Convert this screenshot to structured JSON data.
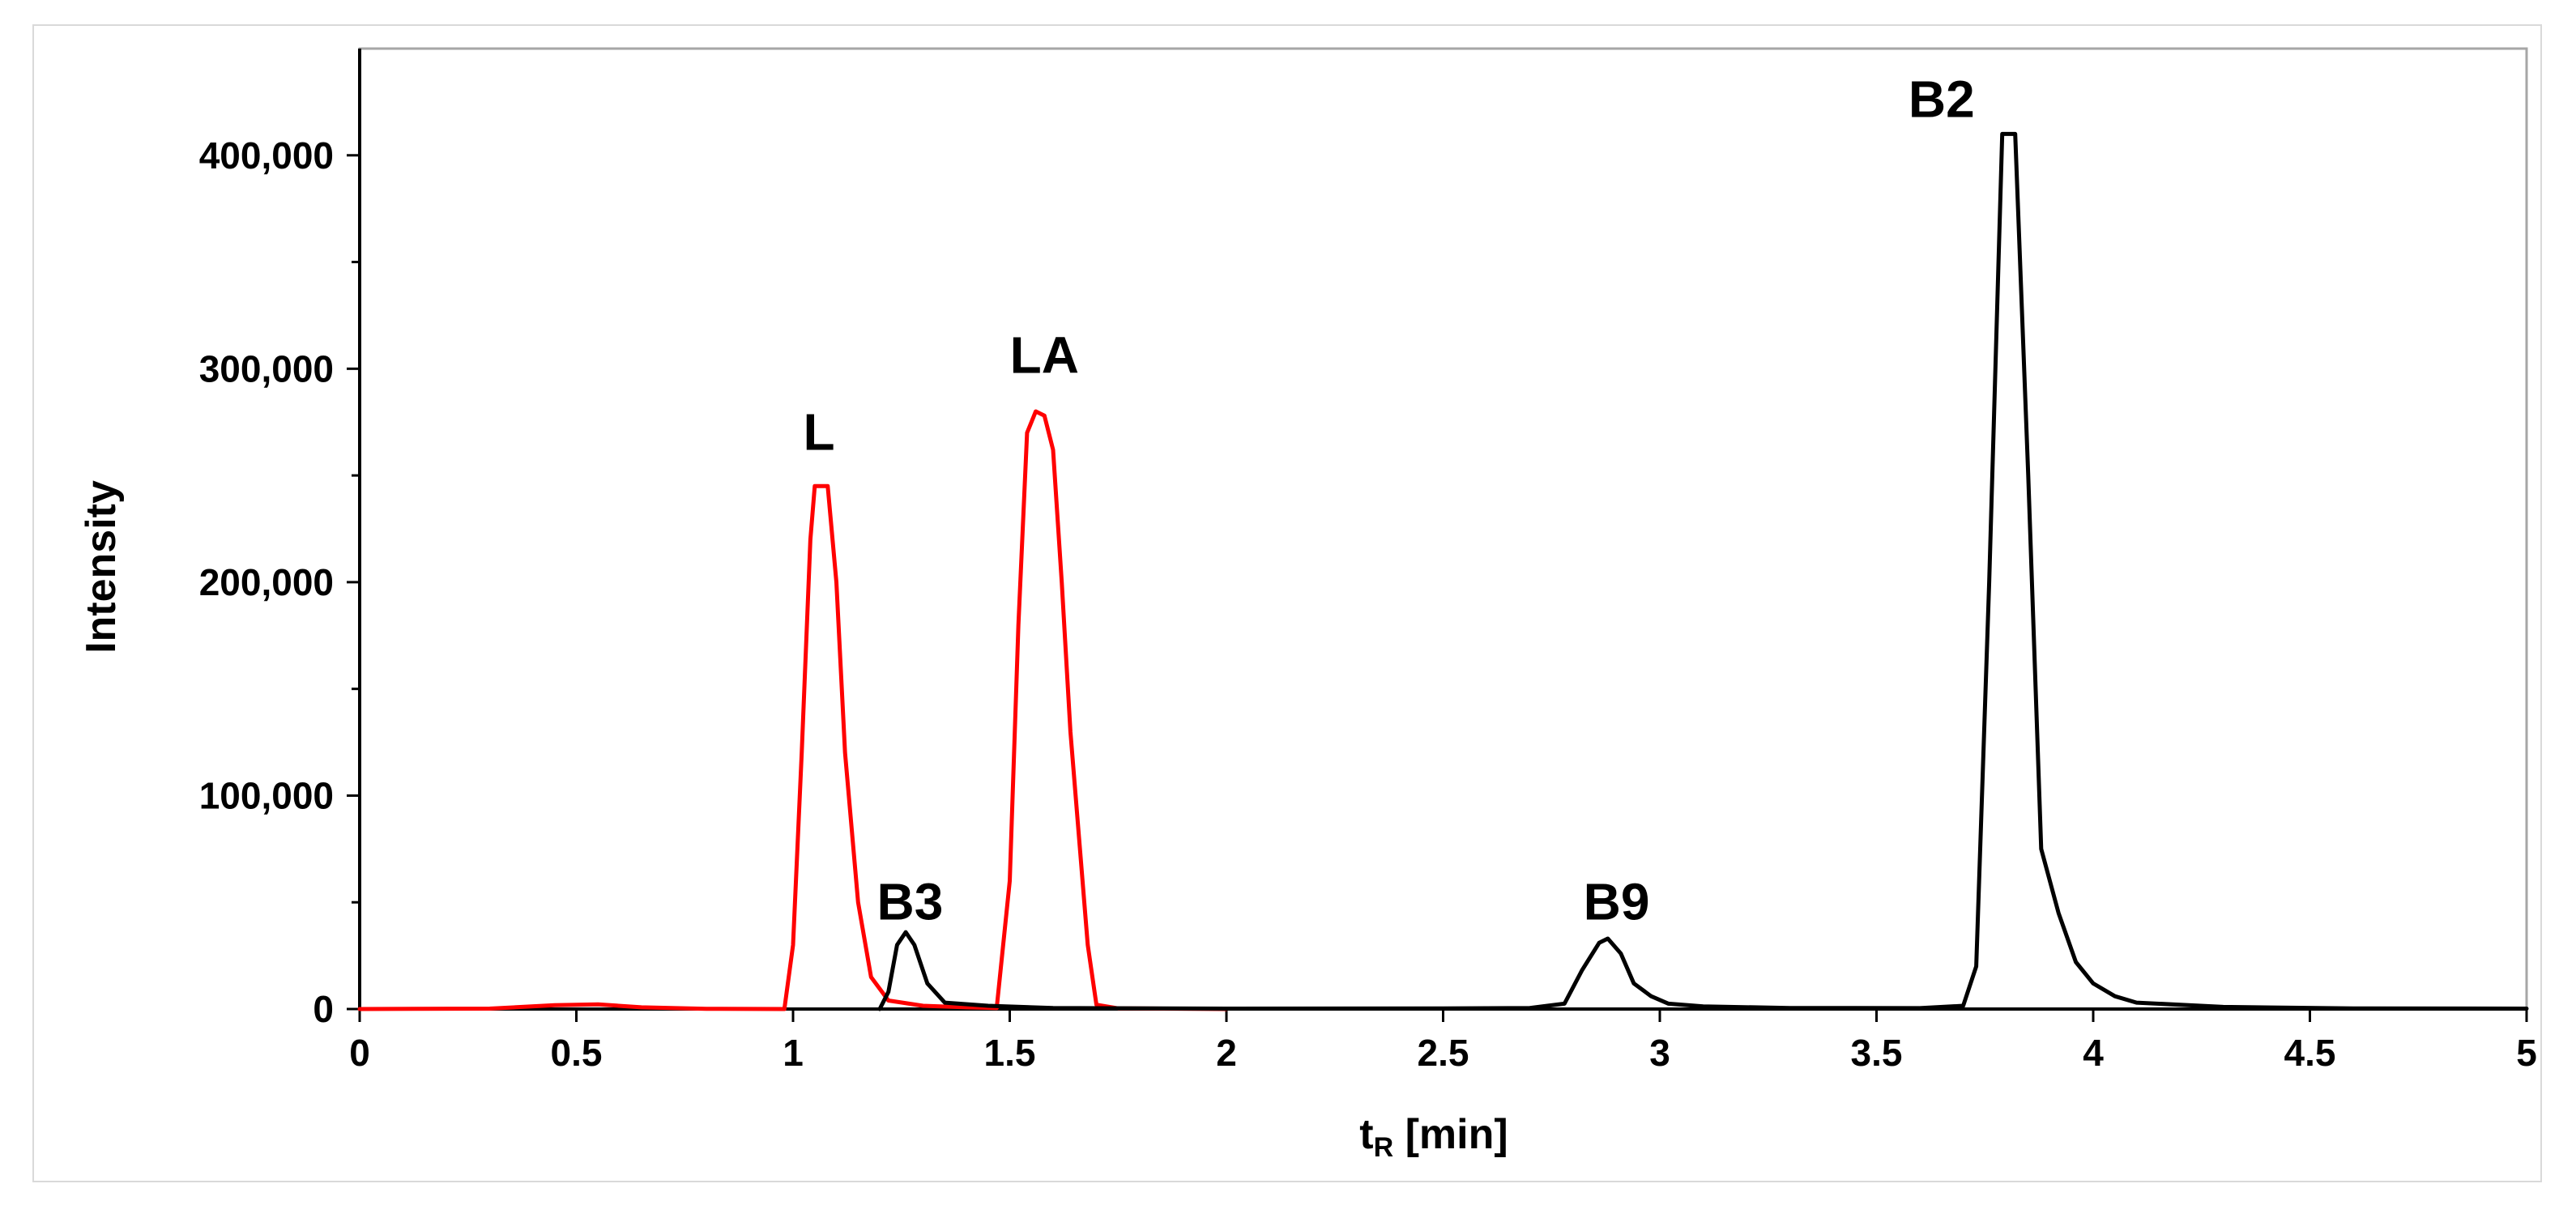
{
  "chart_data": {
    "type": "line",
    "xlabel_main": "t",
    "xlabel_sub": "R",
    "xlabel_rest": " [min]",
    "ylabel": "Intensity",
    "xlim": [
      0,
      5
    ],
    "ylim": [
      0,
      450000
    ],
    "x_ticks": [
      {
        "value": 0,
        "label": "0"
      },
      {
        "value": 0.5,
        "label": "0.5"
      },
      {
        "value": 1,
        "label": "1"
      },
      {
        "value": 1.5,
        "label": "1.5"
      },
      {
        "value": 2,
        "label": "2"
      },
      {
        "value": 2.5,
        "label": "2.5"
      },
      {
        "value": 3,
        "label": "3"
      },
      {
        "value": 3.5,
        "label": "3.5"
      },
      {
        "value": 4,
        "label": "4"
      },
      {
        "value": 4.5,
        "label": "4.5"
      },
      {
        "value": 5,
        "label": "5"
      }
    ],
    "y_ticks": [
      {
        "value": 0,
        "label": "0"
      },
      {
        "value": 100000,
        "label": "100,000"
      },
      {
        "value": 200000,
        "label": "200,000"
      },
      {
        "value": 300000,
        "label": "300,000"
      },
      {
        "value": 400000,
        "label": "400,000"
      }
    ],
    "y_minor_ticks": [
      50000,
      150000,
      250000,
      350000
    ],
    "grid": false,
    "legend": "none",
    "series": [
      {
        "color": "#ff0000",
        "points": [
          [
            0,
            0
          ],
          [
            0.3,
            200
          ],
          [
            0.45,
            1800
          ],
          [
            0.55,
            2200
          ],
          [
            0.65,
            800
          ],
          [
            0.8,
            100
          ],
          [
            0.98,
            0
          ],
          [
            1.0,
            30000
          ],
          [
            1.02,
            120000
          ],
          [
            1.04,
            220000
          ],
          [
            1.05,
            245000
          ],
          [
            1.08,
            245000
          ],
          [
            1.1,
            200000
          ],
          [
            1.12,
            120000
          ],
          [
            1.15,
            50000
          ],
          [
            1.18,
            15000
          ],
          [
            1.22,
            4000
          ],
          [
            1.3,
            1500
          ],
          [
            1.4,
            800
          ],
          [
            1.47,
            500
          ],
          [
            1.5,
            60000
          ],
          [
            1.52,
            180000
          ],
          [
            1.54,
            270000
          ],
          [
            1.56,
            280000
          ],
          [
            1.58,
            278000
          ],
          [
            1.6,
            262000
          ],
          [
            1.62,
            200000
          ],
          [
            1.64,
            130000
          ],
          [
            1.66,
            80000
          ],
          [
            1.68,
            30000
          ],
          [
            1.7,
            2000
          ],
          [
            1.75,
            300
          ],
          [
            2.0,
            0
          ]
        ]
      },
      {
        "color": "#000000",
        "points": [
          [
            1.2,
            0
          ],
          [
            1.22,
            8000
          ],
          [
            1.24,
            30000
          ],
          [
            1.26,
            36000
          ],
          [
            1.28,
            30000
          ],
          [
            1.31,
            12000
          ],
          [
            1.35,
            3000
          ],
          [
            1.45,
            1500
          ],
          [
            1.6,
            500
          ],
          [
            2.0,
            200
          ],
          [
            2.5,
            300
          ],
          [
            2.7,
            500
          ],
          [
            2.78,
            2500
          ],
          [
            2.82,
            18000
          ],
          [
            2.86,
            31000
          ],
          [
            2.88,
            33000
          ],
          [
            2.91,
            26000
          ],
          [
            2.94,
            12000
          ],
          [
            2.98,
            6000
          ],
          [
            3.02,
            2500
          ],
          [
            3.1,
            1200
          ],
          [
            3.3,
            500
          ],
          [
            3.6,
            400
          ],
          [
            3.7,
            1500
          ],
          [
            3.73,
            20000
          ],
          [
            3.76,
            200000
          ],
          [
            3.79,
            410000
          ],
          [
            3.82,
            410000
          ],
          [
            3.85,
            250000
          ],
          [
            3.88,
            75000
          ],
          [
            3.92,
            45000
          ],
          [
            3.96,
            22000
          ],
          [
            4.0,
            12000
          ],
          [
            4.05,
            6000
          ],
          [
            4.1,
            3000
          ],
          [
            4.3,
            1000
          ],
          [
            4.6,
            300
          ],
          [
            5.0,
            200
          ]
        ]
      }
    ],
    "annotations": [
      {
        "text": "L",
        "x": 1.06,
        "y": 262000
      },
      {
        "text": "LA",
        "x": 1.58,
        "y": 298000
      },
      {
        "text": "B3",
        "x": 1.27,
        "y": 42000
      },
      {
        "text": "B9",
        "x": 2.9,
        "y": 42000
      },
      {
        "text": "B2",
        "x": 3.65,
        "y": 418000
      }
    ]
  }
}
